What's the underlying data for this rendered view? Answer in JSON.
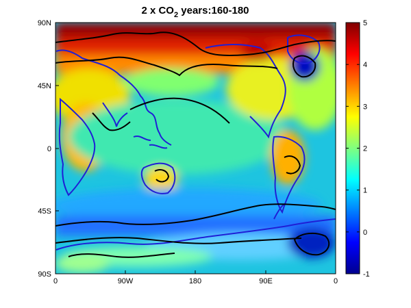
{
  "title": {
    "prefix": "2 x CO",
    "subscript": "2",
    "suffix": " years:160-180"
  },
  "map": {
    "y_ticks": [
      "90N",
      "45N",
      "0",
      "45S",
      "90S"
    ],
    "x_ticks": [
      "0",
      "90W",
      "180",
      "90E",
      "0"
    ],
    "coastline_color": "#1f1fd6",
    "contour_color": "#000000"
  },
  "colorbar": {
    "min": -1,
    "max": 5,
    "tick_values": [
      -1,
      0,
      1,
      2,
      3,
      4,
      5
    ],
    "tick_labels": [
      "-1",
      "0",
      "1",
      "2",
      "3",
      "4",
      "5"
    ],
    "colormap": "jet"
  },
  "field_regions": [
    {
      "name": "tropical-ocean",
      "value": 1.8
    },
    {
      "name": "southern-ocean-band",
      "value": 0.6
    },
    {
      "name": "north-america",
      "value": 2.5
    },
    {
      "name": "arctic",
      "value": 4.6
    },
    {
      "name": "antarctica",
      "value": 1.7
    },
    {
      "name": "weddell-sea-cold-spot",
      "value": -0.5
    },
    {
      "name": "north-pacific-cold-spot",
      "value": -0.5
    }
  ]
}
